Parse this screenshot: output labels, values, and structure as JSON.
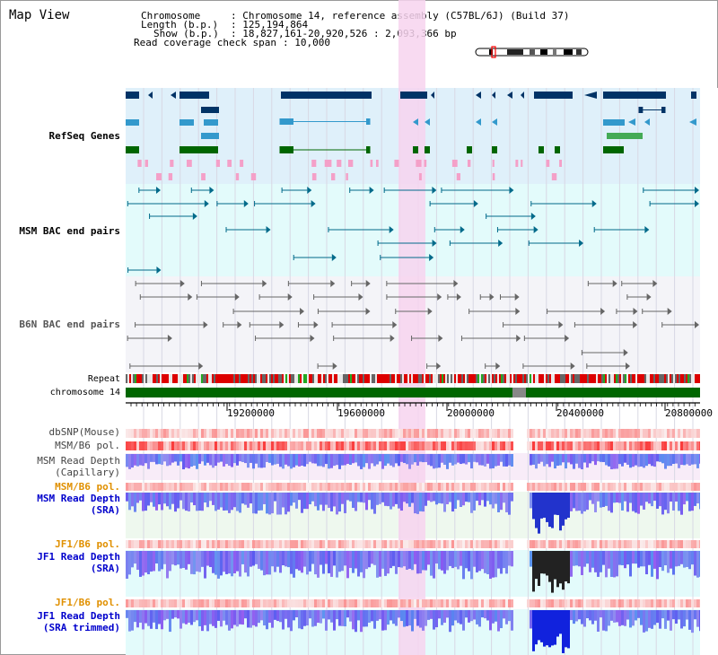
{
  "view": {
    "title": "Map View",
    "info": {
      "chromosome_key": "Chromosome",
      "chromosome_value": ": Chromosome 14, reference assembly (C57BL/6J) (Build 37)",
      "length_key": "Length (b.p.)",
      "length_value": ": 125,194,864",
      "show_key": "Show (b.p.)",
      "show_value": ": 18,827,161-20,920,526 : 2,093,366 bp",
      "span_key": "Read coverage check span",
      "span_value": ": 10,000"
    }
  },
  "tracks": {
    "refseq": "RefSeq Genes",
    "msm_bac": "MSM BAC end pairs",
    "b6n_bac": "B6N BAC end pairs",
    "repeat": "Repeat",
    "chromosome": "chromosome 14",
    "dbsnp": "dbSNP(Mouse)",
    "msm_b6_pol_1": "MSM/B6 pol.",
    "msm_read_depth_cap_1": "MSM Read Depth",
    "msm_read_depth_cap_2": "(Capillary)",
    "msm_b6_pol_2": "MSM/B6 pol.",
    "msm_read_depth_sra_1": "MSM Read Depth",
    "msm_read_depth_sra_2": "(SRA)",
    "jf1_b6_pol_1": "JF1/B6 pol.",
    "jf1_read_depth_sra_1": "JF1 Read Depth",
    "jf1_read_depth_sra_2": "(SRA)",
    "jf1_b6_pol_2": "JF1/B6 pol.",
    "jf1_read_depth_trim_1": "JF1 Read Depth",
    "jf1_read_depth_trim_2": "(SRA trimmed)"
  },
  "axis": {
    "ticks": [
      "19200000",
      "19600000",
      "20000000",
      "20400000",
      "20800000"
    ]
  },
  "colors": {
    "refseq_bg": "#dff0fa",
    "msm_bac_bg": "#e3fbfb",
    "b6n_bac_bg": "#f4f4f8",
    "highlight": "#f7d3ef",
    "label_blue": "#0000cc",
    "label_orange": "#e09000",
    "chromosome_green": "#006600",
    "gene_navy": "#003366",
    "gene_light": "#3399cc",
    "gene_green": "#006600",
    "bac_teal": "#006a8a",
    "depth_blue": "#3333ee"
  }
}
